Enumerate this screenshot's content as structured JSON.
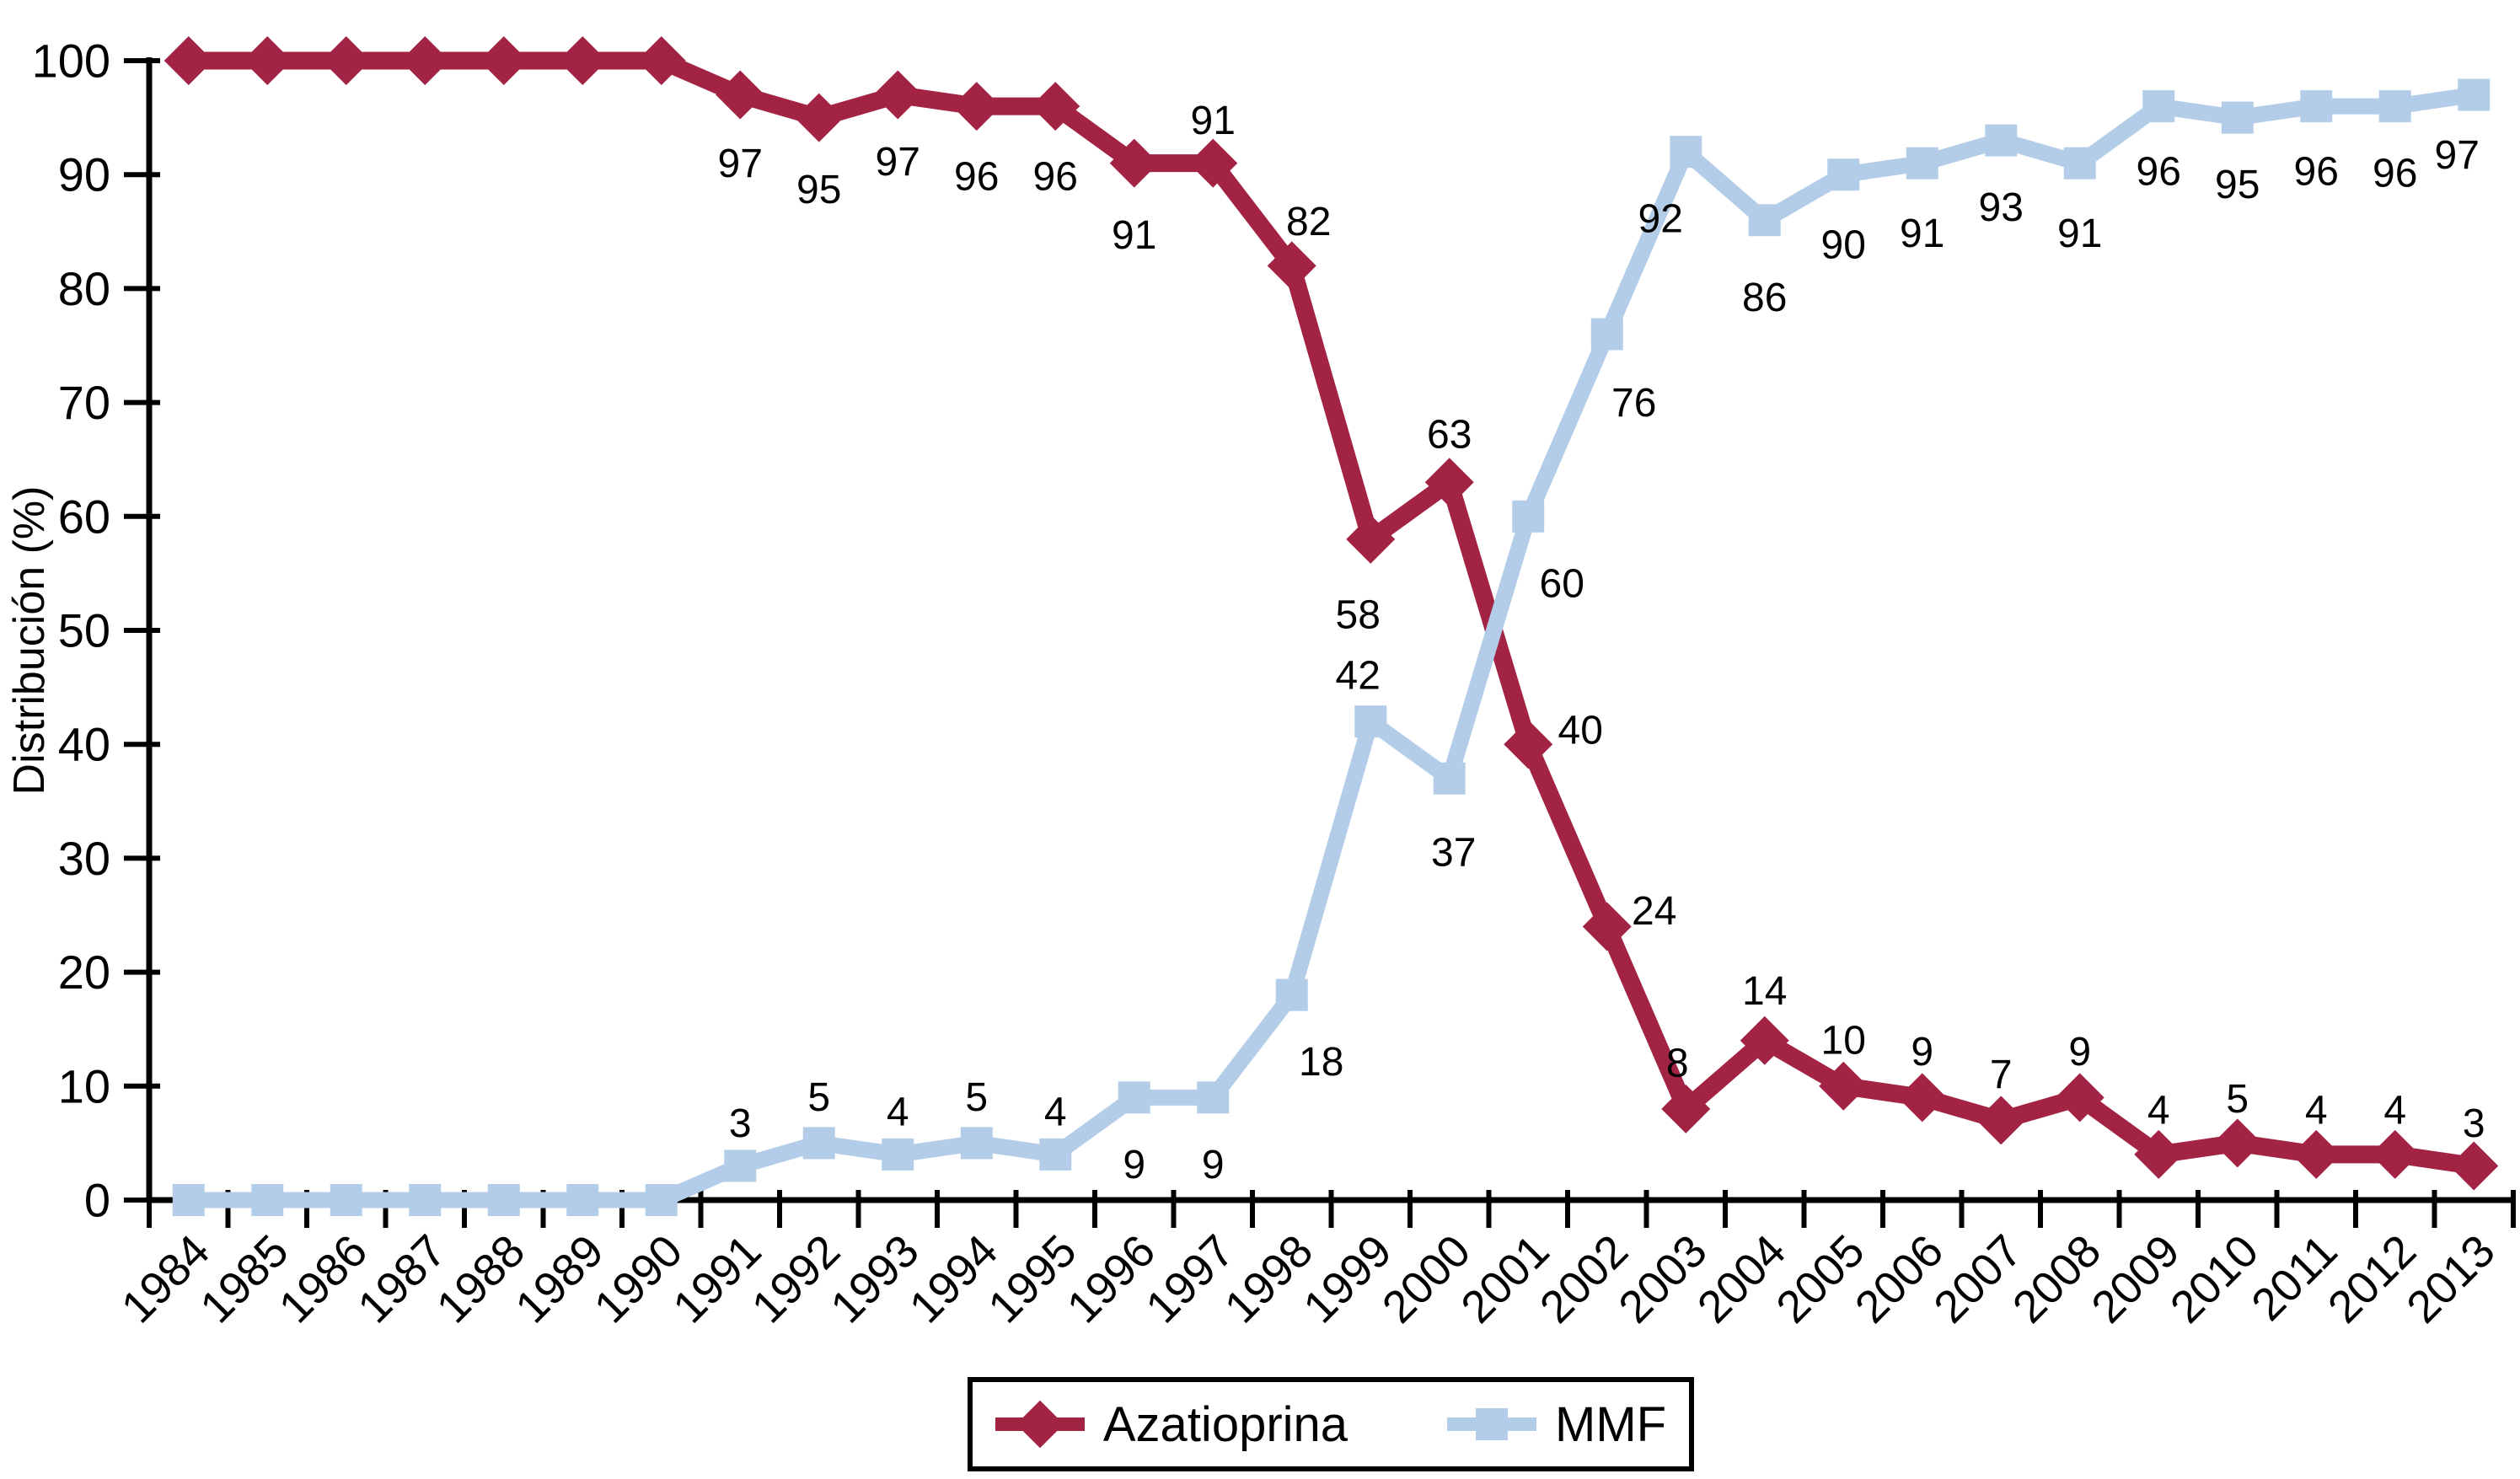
{
  "chart_data": {
    "type": "line",
    "title": "",
    "xlabel": "",
    "ylabel": "Distribución (%)",
    "ylim": [
      0,
      100
    ],
    "ytick_step": 10,
    "ytick_labels": [
      "0",
      "10",
      "20",
      "30",
      "40",
      "50",
      "60",
      "70",
      "80",
      "90",
      "100"
    ],
    "grid": false,
    "legend_position": "bottom-center",
    "background_color": "#ffffff",
    "axis_color": "#000000",
    "categories": [
      "1984",
      "1985",
      "1986",
      "1987",
      "1988",
      "1989",
      "1990",
      "1991",
      "1992",
      "1993",
      "1994",
      "1995",
      "1996",
      "1997",
      "1998",
      "1999",
      "2000",
      "2001",
      "2002",
      "2003",
      "2004",
      "2005",
      "2006",
      "2007",
      "2008",
      "2009",
      "2010",
      "2011",
      "2012",
      "2013"
    ],
    "series": [
      {
        "name": "Azatioprina",
        "color": "#a32345",
        "marker": "diamond",
        "values": [
          100,
          100,
          100,
          100,
          100,
          100,
          100,
          97,
          95,
          97,
          96,
          96,
          91,
          91,
          82,
          58,
          63,
          40,
          24,
          8,
          14,
          10,
          9,
          7,
          9,
          4,
          5,
          4,
          4,
          3
        ],
        "labels": [
          "",
          "",
          "",
          "",
          "",
          "",
          "",
          "97",
          "95",
          "97",
          "96",
          "96",
          "91",
          "91",
          "82",
          "58",
          "63",
          "40",
          "24",
          "8",
          "14",
          "10",
          "9",
          "7",
          "9",
          "4",
          "5",
          "4",
          "4",
          "3"
        ]
      },
      {
        "name": "MMF",
        "color": "#b3cde9",
        "marker": "square",
        "values": [
          0,
          0,
          0,
          0,
          0,
          0,
          0,
          3,
          5,
          4,
          5,
          4,
          9,
          9,
          18,
          42,
          37,
          60,
          76,
          92,
          86,
          90,
          91,
          93,
          91,
          96,
          95,
          96,
          96,
          97
        ],
        "labels": [
          "",
          "",
          "",
          "",
          "",
          "",
          "",
          "3",
          "5",
          "4",
          "5",
          "4",
          "9",
          "9",
          "18",
          "42",
          "37",
          "60",
          "76",
          "92",
          "86",
          "90",
          "91",
          "93",
          "91",
          "96",
          "95",
          "96",
          "96",
          "97"
        ]
      }
    ]
  }
}
